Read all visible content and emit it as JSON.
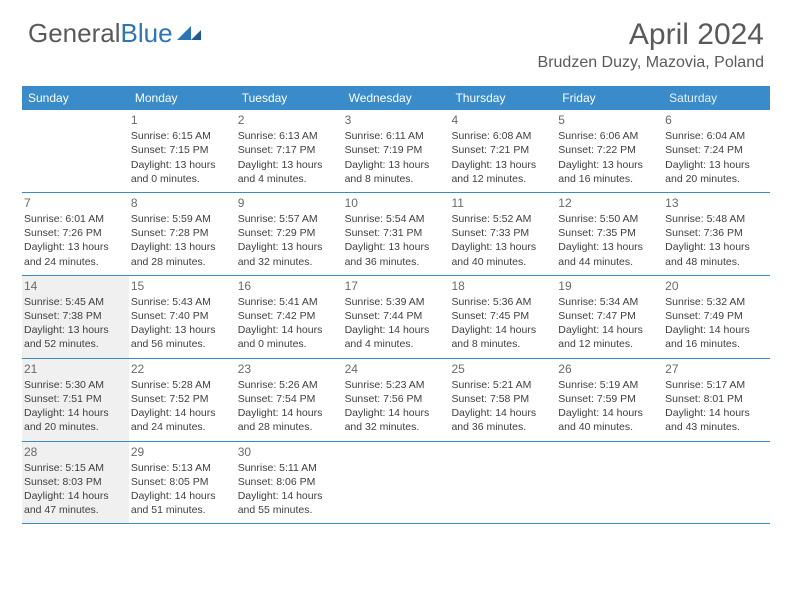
{
  "logo": {
    "text1": "General",
    "text2": "Blue"
  },
  "title": "April 2024",
  "location": "Brudzen Duzy, Mazovia, Poland",
  "colors": {
    "header_bg": "#3a8bc9",
    "header_text": "#ffffff",
    "border": "#3a8bc9",
    "shaded": "#f0f0f0",
    "body_text": "#404040",
    "daynum": "#6a6a6a"
  },
  "weekdays": [
    "Sunday",
    "Monday",
    "Tuesday",
    "Wednesday",
    "Thursday",
    "Friday",
    "Saturday"
  ],
  "weeks": [
    [
      {
        "num": "",
        "sunrise": "",
        "sunset": "",
        "daylight1": "",
        "daylight2": ""
      },
      {
        "num": "1",
        "sunrise": "Sunrise: 6:15 AM",
        "sunset": "Sunset: 7:15 PM",
        "daylight1": "Daylight: 13 hours",
        "daylight2": "and 0 minutes."
      },
      {
        "num": "2",
        "sunrise": "Sunrise: 6:13 AM",
        "sunset": "Sunset: 7:17 PM",
        "daylight1": "Daylight: 13 hours",
        "daylight2": "and 4 minutes."
      },
      {
        "num": "3",
        "sunrise": "Sunrise: 6:11 AM",
        "sunset": "Sunset: 7:19 PM",
        "daylight1": "Daylight: 13 hours",
        "daylight2": "and 8 minutes."
      },
      {
        "num": "4",
        "sunrise": "Sunrise: 6:08 AM",
        "sunset": "Sunset: 7:21 PM",
        "daylight1": "Daylight: 13 hours",
        "daylight2": "and 12 minutes."
      },
      {
        "num": "5",
        "sunrise": "Sunrise: 6:06 AM",
        "sunset": "Sunset: 7:22 PM",
        "daylight1": "Daylight: 13 hours",
        "daylight2": "and 16 minutes."
      },
      {
        "num": "6",
        "sunrise": "Sunrise: 6:04 AM",
        "sunset": "Sunset: 7:24 PM",
        "daylight1": "Daylight: 13 hours",
        "daylight2": "and 20 minutes."
      }
    ],
    [
      {
        "num": "7",
        "sunrise": "Sunrise: 6:01 AM",
        "sunset": "Sunset: 7:26 PM",
        "daylight1": "Daylight: 13 hours",
        "daylight2": "and 24 minutes."
      },
      {
        "num": "8",
        "sunrise": "Sunrise: 5:59 AM",
        "sunset": "Sunset: 7:28 PM",
        "daylight1": "Daylight: 13 hours",
        "daylight2": "and 28 minutes."
      },
      {
        "num": "9",
        "sunrise": "Sunrise: 5:57 AM",
        "sunset": "Sunset: 7:29 PM",
        "daylight1": "Daylight: 13 hours",
        "daylight2": "and 32 minutes."
      },
      {
        "num": "10",
        "sunrise": "Sunrise: 5:54 AM",
        "sunset": "Sunset: 7:31 PM",
        "daylight1": "Daylight: 13 hours",
        "daylight2": "and 36 minutes."
      },
      {
        "num": "11",
        "sunrise": "Sunrise: 5:52 AM",
        "sunset": "Sunset: 7:33 PM",
        "daylight1": "Daylight: 13 hours",
        "daylight2": "and 40 minutes."
      },
      {
        "num": "12",
        "sunrise": "Sunrise: 5:50 AM",
        "sunset": "Sunset: 7:35 PM",
        "daylight1": "Daylight: 13 hours",
        "daylight2": "and 44 minutes."
      },
      {
        "num": "13",
        "sunrise": "Sunrise: 5:48 AM",
        "sunset": "Sunset: 7:36 PM",
        "daylight1": "Daylight: 13 hours",
        "daylight2": "and 48 minutes."
      }
    ],
    [
      {
        "num": "14",
        "sunrise": "Sunrise: 5:45 AM",
        "sunset": "Sunset: 7:38 PM",
        "daylight1": "Daylight: 13 hours",
        "daylight2": "and 52 minutes.",
        "shaded": true
      },
      {
        "num": "15",
        "sunrise": "Sunrise: 5:43 AM",
        "sunset": "Sunset: 7:40 PM",
        "daylight1": "Daylight: 13 hours",
        "daylight2": "and 56 minutes."
      },
      {
        "num": "16",
        "sunrise": "Sunrise: 5:41 AM",
        "sunset": "Sunset: 7:42 PM",
        "daylight1": "Daylight: 14 hours",
        "daylight2": "and 0 minutes."
      },
      {
        "num": "17",
        "sunrise": "Sunrise: 5:39 AM",
        "sunset": "Sunset: 7:44 PM",
        "daylight1": "Daylight: 14 hours",
        "daylight2": "and 4 minutes."
      },
      {
        "num": "18",
        "sunrise": "Sunrise: 5:36 AM",
        "sunset": "Sunset: 7:45 PM",
        "daylight1": "Daylight: 14 hours",
        "daylight2": "and 8 minutes."
      },
      {
        "num": "19",
        "sunrise": "Sunrise: 5:34 AM",
        "sunset": "Sunset: 7:47 PM",
        "daylight1": "Daylight: 14 hours",
        "daylight2": "and 12 minutes."
      },
      {
        "num": "20",
        "sunrise": "Sunrise: 5:32 AM",
        "sunset": "Sunset: 7:49 PM",
        "daylight1": "Daylight: 14 hours",
        "daylight2": "and 16 minutes."
      }
    ],
    [
      {
        "num": "21",
        "sunrise": "Sunrise: 5:30 AM",
        "sunset": "Sunset: 7:51 PM",
        "daylight1": "Daylight: 14 hours",
        "daylight2": "and 20 minutes.",
        "shaded": true
      },
      {
        "num": "22",
        "sunrise": "Sunrise: 5:28 AM",
        "sunset": "Sunset: 7:52 PM",
        "daylight1": "Daylight: 14 hours",
        "daylight2": "and 24 minutes."
      },
      {
        "num": "23",
        "sunrise": "Sunrise: 5:26 AM",
        "sunset": "Sunset: 7:54 PM",
        "daylight1": "Daylight: 14 hours",
        "daylight2": "and 28 minutes."
      },
      {
        "num": "24",
        "sunrise": "Sunrise: 5:23 AM",
        "sunset": "Sunset: 7:56 PM",
        "daylight1": "Daylight: 14 hours",
        "daylight2": "and 32 minutes."
      },
      {
        "num": "25",
        "sunrise": "Sunrise: 5:21 AM",
        "sunset": "Sunset: 7:58 PM",
        "daylight1": "Daylight: 14 hours",
        "daylight2": "and 36 minutes."
      },
      {
        "num": "26",
        "sunrise": "Sunrise: 5:19 AM",
        "sunset": "Sunset: 7:59 PM",
        "daylight1": "Daylight: 14 hours",
        "daylight2": "and 40 minutes."
      },
      {
        "num": "27",
        "sunrise": "Sunrise: 5:17 AM",
        "sunset": "Sunset: 8:01 PM",
        "daylight1": "Daylight: 14 hours",
        "daylight2": "and 43 minutes."
      }
    ],
    [
      {
        "num": "28",
        "sunrise": "Sunrise: 5:15 AM",
        "sunset": "Sunset: 8:03 PM",
        "daylight1": "Daylight: 14 hours",
        "daylight2": "and 47 minutes.",
        "shaded": true
      },
      {
        "num": "29",
        "sunrise": "Sunrise: 5:13 AM",
        "sunset": "Sunset: 8:05 PM",
        "daylight1": "Daylight: 14 hours",
        "daylight2": "and 51 minutes."
      },
      {
        "num": "30",
        "sunrise": "Sunrise: 5:11 AM",
        "sunset": "Sunset: 8:06 PM",
        "daylight1": "Daylight: 14 hours",
        "daylight2": "and 55 minutes."
      },
      {
        "num": "",
        "sunrise": "",
        "sunset": "",
        "daylight1": "",
        "daylight2": ""
      },
      {
        "num": "",
        "sunrise": "",
        "sunset": "",
        "daylight1": "",
        "daylight2": ""
      },
      {
        "num": "",
        "sunrise": "",
        "sunset": "",
        "daylight1": "",
        "daylight2": ""
      },
      {
        "num": "",
        "sunrise": "",
        "sunset": "",
        "daylight1": "",
        "daylight2": ""
      }
    ]
  ]
}
